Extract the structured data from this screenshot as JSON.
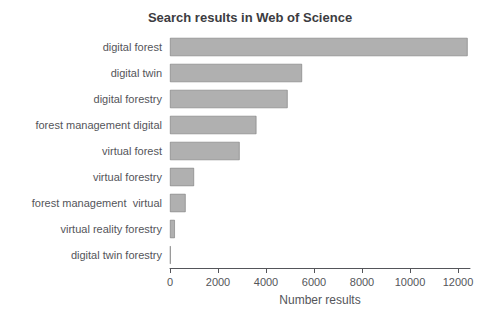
{
  "chart_data": {
    "type": "bar",
    "orientation": "horizontal",
    "title": "Search results in Web of Science",
    "xlabel": "Number results",
    "categories": [
      "digital twin forestry",
      "virtual reality forestry",
      "forest management  virtual",
      "virtual forestry",
      "virtual forest",
      "forest management digital",
      "digital forestry",
      "digital twin",
      "digital forest"
    ],
    "values": [
      25,
      200,
      650,
      1000,
      2900,
      3600,
      4900,
      5500,
      12400
    ],
    "color": "#b0b0b0",
    "xlim": [
      0,
      12500
    ],
    "xticks": [
      0,
      2000,
      4000,
      6000,
      8000,
      10000,
      12000
    ],
    "grid": false
  }
}
